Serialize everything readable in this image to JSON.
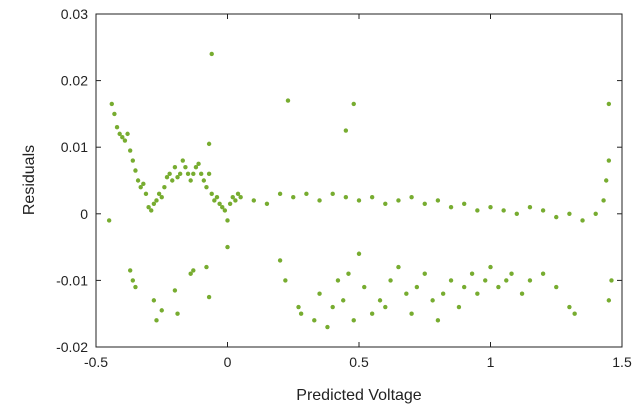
{
  "chart_data": {
    "type": "scatter",
    "title": "",
    "xlabel": "Predicted Voltage",
    "ylabel": "Residuals",
    "xlim": [
      -0.5,
      1.5
    ],
    "ylim": [
      -0.02,
      0.03
    ],
    "x_ticks": [
      -0.5,
      0,
      0.5,
      1,
      1.5
    ],
    "x_tick_labels": [
      "-0.5",
      "0",
      "0.5",
      "1",
      "1.5"
    ],
    "y_ticks": [
      -0.02,
      -0.01,
      0,
      0.01,
      0.02,
      0.03
    ],
    "y_tick_labels": [
      "-0.02",
      "-0.01",
      "0",
      "0.01",
      "0.02",
      "0.03"
    ],
    "grid": false,
    "legend": "none",
    "marker_color": "#77ac30",
    "series": [
      {
        "points": [
          [
            -0.44,
            0.0165
          ],
          [
            -0.43,
            0.015
          ],
          [
            -0.42,
            0.013
          ],
          [
            -0.41,
            0.012
          ],
          [
            -0.4,
            0.0115
          ],
          [
            -0.39,
            0.011
          ],
          [
            -0.38,
            0.012
          ],
          [
            -0.37,
            0.0095
          ],
          [
            -0.36,
            0.008
          ],
          [
            -0.35,
            0.0065
          ],
          [
            -0.34,
            0.005
          ],
          [
            -0.33,
            0.004
          ],
          [
            -0.32,
            0.0045
          ],
          [
            -0.31,
            0.003
          ],
          [
            -0.3,
            0.001
          ],
          [
            -0.29,
            0.0005
          ],
          [
            -0.28,
            0.0015
          ],
          [
            -0.27,
            0.002
          ],
          [
            -0.26,
            0.003
          ],
          [
            -0.25,
            0.0025
          ],
          [
            -0.24,
            0.004
          ],
          [
            -0.23,
            0.0055
          ],
          [
            -0.22,
            0.006
          ],
          [
            -0.21,
            0.005
          ],
          [
            -0.2,
            0.007
          ],
          [
            -0.19,
            0.0055
          ],
          [
            -0.18,
            0.006
          ],
          [
            -0.17,
            0.008
          ],
          [
            -0.16,
            0.007
          ],
          [
            -0.15,
            0.006
          ],
          [
            -0.14,
            0.005
          ],
          [
            -0.13,
            0.006
          ],
          [
            -0.12,
            0.007
          ],
          [
            -0.11,
            0.0075
          ],
          [
            -0.1,
            0.006
          ],
          [
            -0.09,
            0.005
          ],
          [
            -0.08,
            0.004
          ],
          [
            -0.07,
            0.006
          ],
          [
            -0.06,
            0.003
          ],
          [
            -0.05,
            0.002
          ],
          [
            -0.04,
            0.0025
          ],
          [
            -0.03,
            0.0015
          ],
          [
            -0.02,
            0.001
          ],
          [
            -0.01,
            0.0005
          ],
          [
            0.0,
            -0.001
          ],
          [
            0.01,
            0.0015
          ],
          [
            0.02,
            0.0025
          ],
          [
            0.03,
            0.002
          ],
          [
            0.04,
            0.003
          ],
          [
            0.05,
            0.0025
          ],
          [
            0.1,
            0.002
          ],
          [
            0.15,
            0.0015
          ],
          [
            0.2,
            0.003
          ],
          [
            0.25,
            0.0025
          ],
          [
            0.3,
            0.003
          ],
          [
            0.35,
            0.002
          ],
          [
            0.4,
            0.003
          ],
          [
            0.45,
            0.0025
          ],
          [
            0.5,
            0.002
          ],
          [
            0.55,
            0.0025
          ],
          [
            0.6,
            0.0015
          ],
          [
            0.65,
            0.002
          ],
          [
            0.7,
            0.0025
          ],
          [
            0.75,
            0.0015
          ],
          [
            0.8,
            0.002
          ],
          [
            0.85,
            0.001
          ],
          [
            0.9,
            0.0015
          ],
          [
            0.95,
            0.0005
          ],
          [
            1.0,
            0.001
          ],
          [
            1.05,
            0.0005
          ],
          [
            1.1,
            0.0
          ],
          [
            1.15,
            0.001
          ],
          [
            1.2,
            0.0005
          ],
          [
            1.25,
            -0.0005
          ],
          [
            1.3,
            0.0
          ],
          [
            1.35,
            -0.001
          ],
          [
            1.4,
            0.0
          ],
          [
            1.43,
            0.002
          ],
          [
            1.44,
            0.005
          ],
          [
            1.45,
            0.008
          ],
          [
            -0.06,
            0.024
          ],
          [
            0.23,
            0.017
          ],
          [
            0.48,
            0.0165
          ],
          [
            0.45,
            0.0125
          ],
          [
            -0.07,
            0.0105
          ],
          [
            1.45,
            0.0165
          ],
          [
            -0.45,
            -0.001
          ],
          [
            0.0,
            -0.005
          ],
          [
            1.45,
            -0.013
          ],
          [
            1.46,
            -0.01
          ],
          [
            -0.37,
            -0.0085
          ],
          [
            -0.36,
            -0.01
          ],
          [
            -0.35,
            -0.011
          ],
          [
            -0.28,
            -0.013
          ],
          [
            -0.27,
            -0.016
          ],
          [
            -0.25,
            -0.0145
          ],
          [
            -0.2,
            -0.0115
          ],
          [
            -0.19,
            -0.015
          ],
          [
            -0.14,
            -0.009
          ],
          [
            -0.13,
            -0.0085
          ],
          [
            -0.08,
            -0.008
          ],
          [
            -0.07,
            -0.0125
          ],
          [
            0.2,
            -0.007
          ],
          [
            0.22,
            -0.01
          ],
          [
            0.27,
            -0.014
          ],
          [
            0.28,
            -0.015
          ],
          [
            0.33,
            -0.016
          ],
          [
            0.35,
            -0.012
          ],
          [
            0.38,
            -0.017
          ],
          [
            0.4,
            -0.014
          ],
          [
            0.42,
            -0.01
          ],
          [
            0.44,
            -0.013
          ],
          [
            0.46,
            -0.009
          ],
          [
            0.48,
            -0.016
          ],
          [
            0.5,
            -0.006
          ],
          [
            0.52,
            -0.011
          ],
          [
            0.55,
            -0.015
          ],
          [
            0.58,
            -0.013
          ],
          [
            0.6,
            -0.014
          ],
          [
            0.62,
            -0.01
          ],
          [
            0.65,
            -0.008
          ],
          [
            0.68,
            -0.012
          ],
          [
            0.7,
            -0.015
          ],
          [
            0.72,
            -0.011
          ],
          [
            0.75,
            -0.009
          ],
          [
            0.78,
            -0.013
          ],
          [
            0.8,
            -0.016
          ],
          [
            0.82,
            -0.012
          ],
          [
            0.85,
            -0.01
          ],
          [
            0.88,
            -0.014
          ],
          [
            0.9,
            -0.011
          ],
          [
            0.93,
            -0.009
          ],
          [
            0.95,
            -0.012
          ],
          [
            0.98,
            -0.01
          ],
          [
            1.0,
            -0.008
          ],
          [
            1.03,
            -0.011
          ],
          [
            1.06,
            -0.01
          ],
          [
            1.08,
            -0.009
          ],
          [
            1.12,
            -0.012
          ],
          [
            1.15,
            -0.01
          ],
          [
            1.2,
            -0.009
          ],
          [
            1.25,
            -0.011
          ],
          [
            1.3,
            -0.014
          ],
          [
            1.32,
            -0.015
          ]
        ]
      }
    ]
  }
}
